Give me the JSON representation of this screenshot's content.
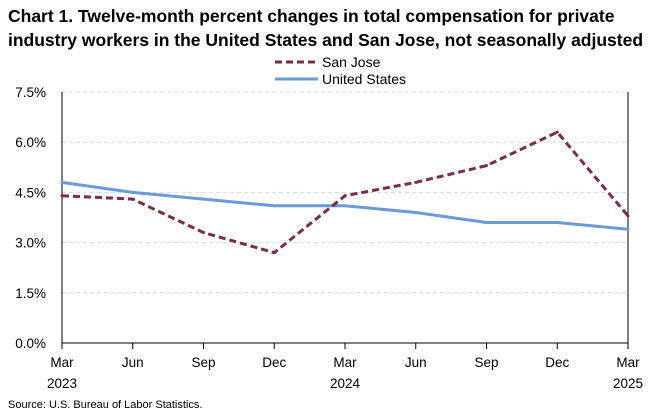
{
  "chart_data": {
    "type": "line",
    "title_line1": "Chart 1. Twelve-month percent changes in total compensation for private",
    "title_line2": "industry workers in the United States and San Jose, not seasonally adjusted",
    "x_labels": [
      "Mar",
      "Jun",
      "Sep",
      "Dec",
      "Mar",
      "Jun",
      "Sep",
      "Dec",
      "Mar"
    ],
    "x_year_labels": [
      "2023",
      "",
      "",
      "",
      "2024",
      "",
      "",
      "",
      "2025"
    ],
    "x": [
      "Mar 2023",
      "Jun 2023",
      "Sep 2023",
      "Dec 2023",
      "Mar 2024",
      "Jun 2024",
      "Sep 2024",
      "Dec 2024",
      "Mar 2025"
    ],
    "series": [
      {
        "name": "San Jose",
        "color": "#7a2c4d",
        "dash": true,
        "values": [
          4.4,
          4.3,
          3.3,
          2.7,
          4.4,
          4.8,
          5.3,
          6.3,
          3.8
        ]
      },
      {
        "name": "United States",
        "color": "#6a9bd8",
        "dash": false,
        "values": [
          4.8,
          4.5,
          4.3,
          4.1,
          4.1,
          3.9,
          3.6,
          3.6,
          3.4
        ]
      }
    ],
    "y_ticks": [
      "0.0%",
      "1.5%",
      "3.0%",
      "4.5%",
      "6.0%",
      "7.5%"
    ],
    "ylim": [
      0,
      7.5
    ],
    "grid": true,
    "legend": "top-center"
  },
  "source": "Source: U.S. Bureau of Labor Statistics."
}
